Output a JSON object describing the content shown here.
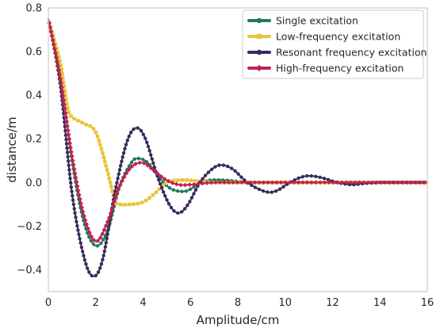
{
  "chart_data": {
    "type": "line",
    "title": "",
    "xlabel": "Amplitude/cm",
    "ylabel": "distance/m",
    "xlim": [
      0,
      16
    ],
    "ylim": [
      -0.5,
      0.8
    ],
    "xticks": [
      0,
      2,
      4,
      6,
      8,
      10,
      12,
      14,
      16
    ],
    "yticks": [
      -0.4,
      -0.2,
      0.0,
      0.2,
      0.4,
      0.6,
      0.8
    ],
    "ytick_labels": [
      "−0.4",
      "−0.2",
      "0.0",
      "0.2",
      "0.4",
      "0.6",
      "0.8"
    ],
    "grid": false,
    "legend_position": "top-right",
    "series": [
      {
        "name": "Single excitation",
        "color": "#1f7a5c",
        "marker": "circle",
        "x": [
          0,
          0.5,
          1.0,
          1.5,
          2.0,
          2.5,
          3.0,
          3.5,
          3.8,
          4.2,
          4.7,
          5.2,
          5.8,
          6.3,
          6.8,
          7.5,
          8.5,
          10,
          12,
          14,
          16
        ],
        "y": [
          0.75,
          0.5,
          0.1,
          -0.18,
          -0.29,
          -0.22,
          -0.02,
          0.09,
          0.11,
          0.09,
          0.02,
          -0.03,
          -0.04,
          -0.01,
          0.01,
          0.01,
          0.0,
          0.0,
          0.0,
          0.0,
          0.0
        ]
      },
      {
        "name": "Low-frequency excitation",
        "color": "#e8c43b",
        "marker": "square",
        "x": [
          0,
          0.5,
          0.8,
          1.0,
          1.5,
          2.0,
          2.5,
          2.8,
          3.0,
          3.5,
          4.0,
          4.5,
          5.0,
          5.5,
          6.0,
          7.0,
          8.0,
          10,
          12,
          14,
          16
        ],
        "y": [
          0.75,
          0.55,
          0.35,
          0.3,
          0.27,
          0.23,
          0.05,
          -0.08,
          -0.1,
          -0.1,
          -0.09,
          -0.05,
          0.0,
          0.01,
          0.01,
          0.0,
          0.0,
          0.0,
          0.0,
          0.0,
          0.0
        ]
      },
      {
        "name": "Resonant frequency excitation",
        "color": "#3d2a5c",
        "marker": "circle",
        "x": [
          0,
          0.5,
          1.0,
          1.5,
          1.9,
          2.3,
          2.8,
          3.3,
          3.7,
          4.1,
          4.6,
          5.1,
          5.5,
          5.9,
          6.4,
          6.9,
          7.3,
          7.8,
          8.4,
          9.1,
          9.6,
          10.2,
          10.7,
          11.1,
          11.6,
          12.2,
          12.8,
          13.3,
          14,
          15,
          16
        ],
        "y": [
          0.75,
          0.45,
          -0.05,
          -0.34,
          -0.43,
          -0.35,
          -0.05,
          0.18,
          0.25,
          0.2,
          0.03,
          -0.1,
          -0.14,
          -0.1,
          0.0,
          0.06,
          0.08,
          0.06,
          0.0,
          -0.04,
          -0.04,
          0.0,
          0.025,
          0.03,
          0.02,
          0.0,
          -0.01,
          -0.005,
          0.0,
          0.0,
          0.0
        ]
      },
      {
        "name": "High-frequency excitation",
        "color": "#c0234e",
        "marker": "diamond",
        "x": [
          0,
          0.5,
          1.0,
          1.5,
          2.0,
          2.5,
          3.0,
          3.5,
          4.0,
          4.5,
          5.0,
          5.5,
          6.0,
          7.0,
          8.0,
          10,
          12,
          14,
          16
        ],
        "y": [
          0.75,
          0.48,
          0.12,
          -0.15,
          -0.27,
          -0.18,
          -0.02,
          0.07,
          0.09,
          0.05,
          0.01,
          -0.01,
          -0.01,
          0.0,
          0.0,
          0.0,
          0.0,
          0.0,
          0.0
        ]
      }
    ]
  }
}
